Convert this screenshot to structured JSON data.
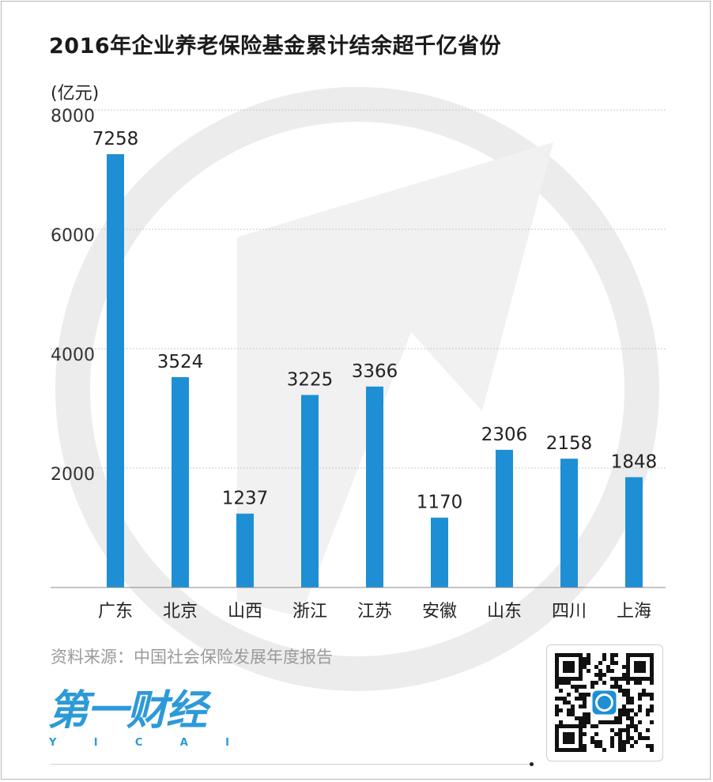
{
  "title": "2016年企业养老保险基金累计结余超千亿省份",
  "unit_label": "(亿元)",
  "source": "资料来源：中国社会保险发展年度报告",
  "logo": {
    "cn": "第一财经",
    "en": [
      "Y",
      "I",
      "C",
      "A",
      "I"
    ]
  },
  "colors": {
    "bar": "#1e8fd5",
    "grid": "#c8c8c8",
    "axis": "#888888",
    "watermark": "#ececec"
  },
  "qr_icon": "qr-code-icon",
  "chart_data": {
    "type": "bar",
    "title": "2016年企业养老保险基金累计结余超千亿省份",
    "ylabel": "(亿元)",
    "xlabel": "",
    "categories": [
      "广东",
      "北京",
      "山西",
      "浙江",
      "江苏",
      "安徽",
      "山东",
      "四川",
      "上海"
    ],
    "values": [
      7258,
      3524,
      1237,
      3225,
      3366,
      1170,
      2306,
      2158,
      1848
    ],
    "ylim": [
      0,
      8000
    ],
    "yticks": [
      2000,
      4000,
      6000,
      8000
    ],
    "grid": true,
    "data_labels": true
  }
}
